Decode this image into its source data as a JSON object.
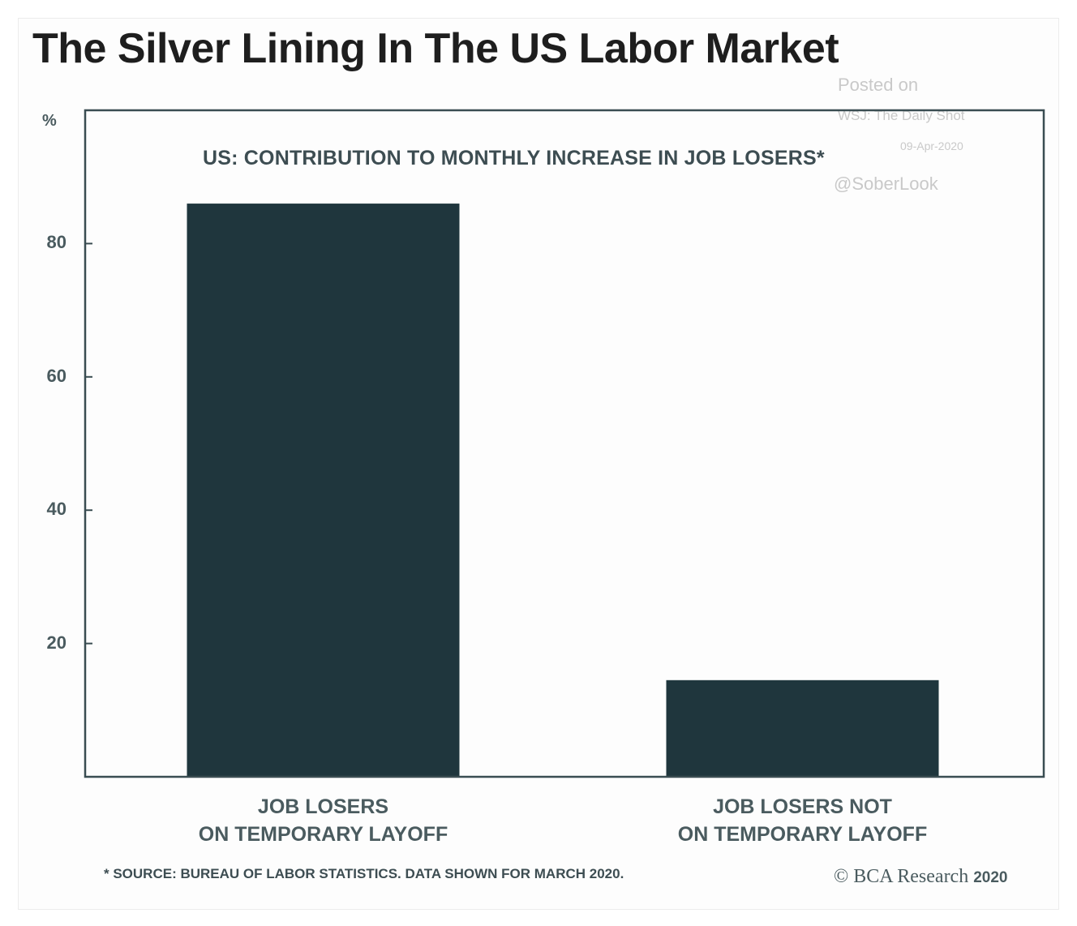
{
  "page": {
    "title": "The Silver Lining In The US Labor Market",
    "watermark": {
      "line1": "Posted on",
      "line2": "WSJ: The Daily Shot",
      "line3": "09-Apr-2020",
      "line4": "@SoberLook"
    },
    "source_note": "* SOURCE: BUREAU OF LABOR STATISTICS. DATA SHOWN FOR MARCH 2020.",
    "brand": "© BCA Research",
    "brand_year": "2020"
  },
  "chart_data": {
    "type": "bar",
    "title": "US: CONTRIBUTION TO MONTHLY INCREASE IN JOB LOSERS*",
    "ylabel": "%",
    "xlabel": "",
    "categories": [
      "JOB LOSERS ON TEMPORARY LAYOFF",
      "JOB LOSERS NOT ON TEMPORARY LAYOFF"
    ],
    "category_lines": [
      [
        "JOB LOSERS",
        "ON TEMPORARY LAYOFF"
      ],
      [
        "JOB LOSERS NOT",
        "ON TEMPORARY LAYOFF"
      ]
    ],
    "values": [
      86,
      14.5
    ],
    "ylim": [
      0,
      100
    ],
    "yticks": [
      20,
      40,
      60,
      80
    ],
    "grid": false,
    "legend": "none",
    "bar_color": "#1f363d"
  }
}
